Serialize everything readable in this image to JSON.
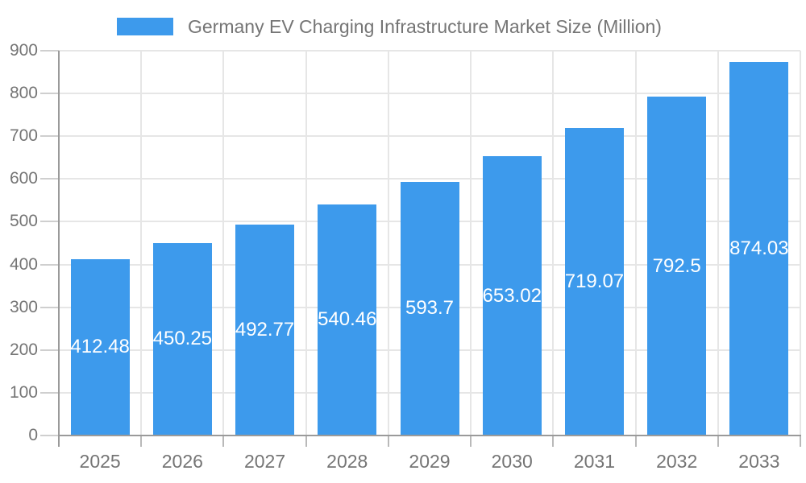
{
  "legend": {
    "label": "Germany EV Charging Infrastructure Market Size (Million)",
    "swatch_color": "#3D9AEC"
  },
  "chart_data": {
    "type": "bar",
    "title": "Germany EV Charging Infrastructure Market Size (Million)",
    "categories": [
      "2025",
      "2026",
      "2027",
      "2028",
      "2029",
      "2030",
      "2031",
      "2032",
      "2033"
    ],
    "series": [
      {
        "name": "Germany EV Charging Infrastructure Market Size (Million)",
        "values": [
          412.48,
          450.25,
          492.77,
          540.46,
          593.7,
          653.02,
          719.07,
          792.5,
          874.03
        ],
        "color": "#3D9AEC"
      }
    ],
    "xlabel": "",
    "ylabel": "",
    "ylim": [
      0,
      900
    ],
    "ytick_step": 100,
    "yticks": [
      0,
      100,
      200,
      300,
      400,
      500,
      600,
      700,
      800,
      900
    ],
    "grid": true,
    "legend_position": "top",
    "value_labels": "inside-center",
    "value_label_color": "#FFFFFF",
    "axis_label_color": "#757575",
    "grid_color": "#E6E6E6",
    "axis_line_color": "#9A9A9A",
    "background_color": "#FFFFFF"
  }
}
